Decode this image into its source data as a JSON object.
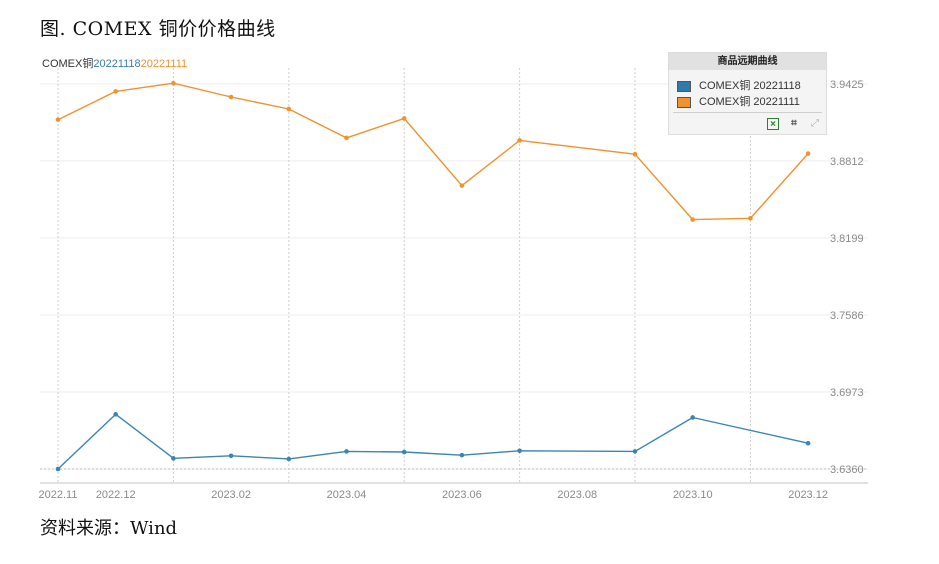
{
  "figure": {
    "title": "图. COMEX 铜价价格曲线",
    "source": "资料来源：Wind"
  },
  "subtitle": {
    "prefix": "COMEX铜",
    "date1": "20221118",
    "date2": "20221111"
  },
  "legend": {
    "title": "商品远期曲线",
    "items": [
      {
        "label": "COMEX铜 20221118",
        "color": "#2f7aa8"
      },
      {
        "label": "COMEX铜 20221111",
        "color": "#f0922d"
      }
    ],
    "tools": [
      "excel-export-icon",
      "crop-icon",
      "share-icon"
    ]
  },
  "chart_data": {
    "type": "line",
    "title": "",
    "xlabel": "",
    "ylabel": "",
    "x_tick_labels": [
      "2022.11",
      "2022.12",
      "2023.02",
      "2023.04",
      "2023.06",
      "2023.08",
      "2023.10",
      "2023.12"
    ],
    "y_tick_labels": [
      "3.9425",
      "3.8812",
      "3.8199",
      "3.7586",
      "3.6973",
      "3.6360"
    ],
    "y_ticks": [
      3.9425,
      3.8812,
      3.8199,
      3.7586,
      3.6973,
      3.636
    ],
    "ylim": [
      3.636,
      3.9425
    ],
    "grid": "vertical dashed lines",
    "legend_position": "top-right",
    "x": [
      "2022-11",
      "2022-12",
      "2023-01",
      "2023-02",
      "2023-03",
      "2023-04",
      "2023-05",
      "2023-07",
      "2023-09",
      "2023-10",
      "2023-12"
    ],
    "series": [
      {
        "name": "COMEX铜 20221118",
        "color": "#3b86ae",
        "points": [
          [
            "2022-11",
            3.636
          ],
          [
            "2022-12",
            3.6795
          ],
          [
            "2023-01",
            3.6445
          ],
          [
            "2023-02",
            3.6465
          ],
          [
            "2023-03",
            3.644
          ],
          [
            "2023-04",
            3.65
          ],
          [
            "2023-05",
            3.6495
          ],
          [
            "2023-06",
            3.647
          ],
          [
            "2023-07",
            3.6505
          ],
          [
            "2023-09",
            3.65
          ],
          [
            "2023-10",
            3.677
          ],
          [
            "2023-12",
            3.6565
          ]
        ]
      },
      {
        "name": "COMEX铜 20221111",
        "color": "#f0922d",
        "points": [
          [
            "2022-11",
            3.914
          ],
          [
            "2022-12",
            3.9365
          ],
          [
            "2023-01",
            3.943
          ],
          [
            "2023-02",
            3.932
          ],
          [
            "2023-03",
            3.9225
          ],
          [
            "2023-04",
            3.8995
          ],
          [
            "2023-05",
            3.915
          ],
          [
            "2023-06",
            3.8615
          ],
          [
            "2023-07",
            3.8975
          ],
          [
            "2023-09",
            3.8865
          ],
          [
            "2023-10",
            3.8345
          ],
          [
            "2023-11",
            3.8355
          ],
          [
            "2023-12",
            3.887
          ]
        ]
      }
    ]
  }
}
